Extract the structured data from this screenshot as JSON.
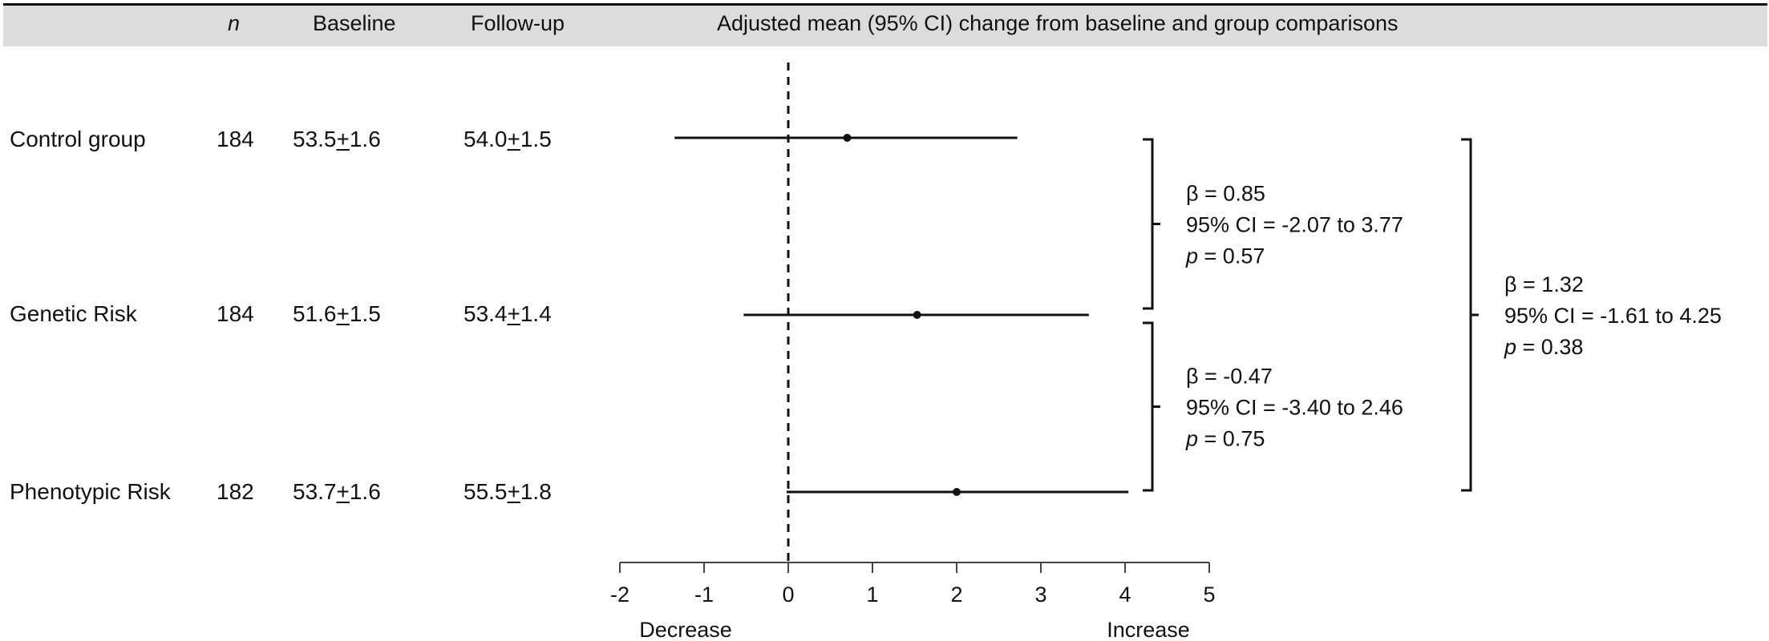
{
  "table": {
    "headers": {
      "n": "n",
      "baseline": "Baseline",
      "followup": "Follow-up",
      "chart": "Adjusted mean (95% CI) change from baseline and group comparisons"
    },
    "rows": [
      {
        "group": "Control group",
        "n": "184",
        "baseline_mean": "53.5",
        "baseline_pm": "+",
        "baseline_sd": "1.6",
        "followup_mean": "54.0",
        "followup_pm": "+",
        "followup_sd": "1.5"
      },
      {
        "group": "Genetic Risk",
        "n": "184",
        "baseline_mean": "51.6",
        "baseline_pm": "+",
        "baseline_sd": "1.5",
        "followup_mean": "53.4",
        "followup_pm": "+",
        "followup_sd": "1.4"
      },
      {
        "group": "Phenotypic Risk",
        "n": "182",
        "baseline_mean": "53.7",
        "baseline_pm": "+",
        "baseline_sd": "1.6",
        "followup_mean": "55.5",
        "followup_pm": "+",
        "followup_sd": "1.8"
      }
    ]
  },
  "chart_data": {
    "type": "forest",
    "categories": [
      "Control group",
      "Genetic Risk",
      "Phenotypic Risk"
    ],
    "estimates": [
      0.7,
      1.53,
      2.0
    ],
    "ci_lower": [
      -1.35,
      -0.53,
      -0.02
    ],
    "ci_upper": [
      2.72,
      3.57,
      4.04
    ],
    "xlim": [
      -2,
      5
    ],
    "xticks": [
      -2,
      -1,
      0,
      1,
      2,
      3,
      4,
      5
    ],
    "tick_labels": [
      "-2",
      "-1",
      "0",
      "1",
      "2",
      "3",
      "4",
      "5"
    ],
    "reference_line": 0,
    "reference_style": "dashed",
    "axis_left_label": "Decrease",
    "axis_right_label": "Increase",
    "comparisons": [
      {
        "from": "Control group",
        "to": "Genetic Risk",
        "beta": "β = 0.85",
        "ci": "95% CI = -2.07 to 3.77",
        "p_letter": "p",
        "p_value": " = 0.57"
      },
      {
        "from": "Genetic Risk",
        "to": "Phenotypic Risk",
        "beta": "β = -0.47",
        "ci": "95% CI = -3.40 to 2.46",
        "p_letter": "p",
        "p_value": " = 0.75"
      },
      {
        "from": "Control group",
        "to": "Phenotypic Risk",
        "beta": "β = 1.32",
        "ci": "95% CI = -1.61 to 4.25",
        "p_letter": "p",
        "p_value": " = 0.38"
      }
    ]
  }
}
